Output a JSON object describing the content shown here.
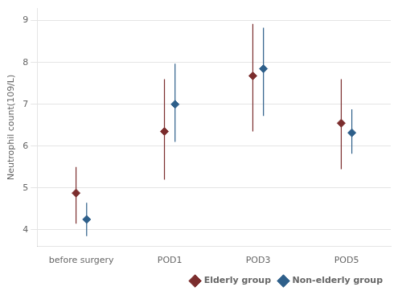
{
  "chart_data": {
    "type": "scatter",
    "categories": [
      "before surgery",
      "POD1",
      "POD3",
      "POD5"
    ],
    "series": [
      {
        "name": "Elderly group",
        "color": "#7B2D2D",
        "marker": "diamond",
        "values": [
          4.88,
          6.35,
          7.68,
          6.55
        ],
        "ci_low": [
          4.15,
          5.2,
          6.35,
          5.45
        ],
        "ci_high": [
          5.5,
          7.6,
          8.92,
          7.6
        ]
      },
      {
        "name": "Non-elderly group",
        "color": "#2E5F8A",
        "marker": "diamond",
        "values": [
          4.25,
          7.0,
          7.85,
          6.32
        ],
        "ci_low": [
          3.85,
          6.1,
          6.72,
          5.82
        ],
        "ci_high": [
          4.65,
          7.97,
          8.83,
          6.88
        ]
      }
    ],
    "ylabel": "Neutrophil count(109/L)",
    "ylim": [
      3.6,
      9.3
    ],
    "yticks": [
      4,
      5,
      6,
      7,
      8,
      9
    ],
    "grid": true,
    "legend": "lower right"
  }
}
